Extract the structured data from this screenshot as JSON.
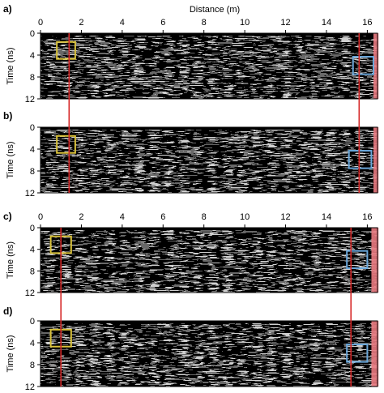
{
  "figure": {
    "x_title": "Distance (m)",
    "y_title": "Time (ns)",
    "colors": {
      "axis": "#000000",
      "marker_line": "#d62828",
      "red_band": "#e9797f",
      "yellow_box": "#d9c23a",
      "blue_box": "#6aa7da"
    },
    "panels": [
      {
        "letter": "a)",
        "x_ticks": [
          "0",
          "2",
          "4",
          "6",
          "8",
          "10",
          "12",
          "14",
          "16"
        ],
        "y_ticks": [
          "0",
          "4",
          "8",
          "12"
        ]
      },
      {
        "letter": "b)",
        "x_ticks": [],
        "y_ticks": [
          "0",
          "4",
          "8",
          "12"
        ]
      },
      {
        "letter": "c)",
        "x_ticks": [
          "0",
          "2",
          "4",
          "6",
          "8",
          "10",
          "12",
          "14",
          "16"
        ],
        "y_ticks": [
          "0",
          "4",
          "8",
          "12"
        ]
      },
      {
        "letter": "d)",
        "x_ticks": [],
        "y_ticks": [
          "0",
          "4",
          "8",
          "12"
        ]
      }
    ]
  },
  "chart_data": [
    {
      "type": "heatmap",
      "panel": "a",
      "xlabel": "Distance (m)",
      "ylabel": "Time (ns)",
      "xlim": [
        0,
        16.5
      ],
      "ylim": [
        12,
        0
      ],
      "marker_lines_x": [
        1.4,
        15.6
      ],
      "yellow_box": {
        "x": [
          0.8,
          1.7
        ],
        "y": [
          1.6,
          4.7
        ]
      },
      "blue_box": {
        "x": [
          15.3,
          16.3
        ],
        "y": [
          4.3,
          7.5
        ]
      },
      "red_band_x": [
        16.3,
        16.55
      ]
    },
    {
      "type": "heatmap",
      "panel": "b",
      "xlabel": "",
      "ylabel": "Time (ns)",
      "xlim": [
        0,
        16.5
      ],
      "ylim": [
        12,
        0
      ],
      "marker_lines_x": [
        1.4,
        15.6
      ],
      "yellow_box": {
        "x": [
          0.8,
          1.7
        ],
        "y": [
          1.6,
          4.7
        ]
      },
      "blue_box": {
        "x": [
          15.1,
          16.2
        ],
        "y": [
          4.3,
          7.5
        ]
      },
      "red_band_x": [
        16.3,
        16.55
      ]
    },
    {
      "type": "heatmap",
      "panel": "c",
      "xlabel": "",
      "ylabel": "Time (ns)",
      "xlim": [
        0,
        16.5
      ],
      "ylim": [
        12,
        0
      ],
      "marker_lines_x": [
        1.0,
        15.2
      ],
      "yellow_box": {
        "x": [
          0.5,
          1.5
        ],
        "y": [
          1.6,
          4.7
        ]
      },
      "blue_box": {
        "x": [
          15.0,
          16.0
        ],
        "y": [
          4.3,
          7.5
        ]
      },
      "red_band_x": [
        16.2,
        16.55
      ]
    },
    {
      "type": "heatmap",
      "panel": "d",
      "xlabel": "",
      "ylabel": "Time (ns)",
      "xlim": [
        0,
        16.5
      ],
      "ylim": [
        12,
        0
      ],
      "marker_lines_x": [
        1.0,
        15.2
      ],
      "yellow_box": {
        "x": [
          0.5,
          1.5
        ],
        "y": [
          1.6,
          4.7
        ]
      },
      "blue_box": {
        "x": [
          15.0,
          16.0
        ],
        "y": [
          4.3,
          7.5
        ]
      },
      "red_band_x": [
        16.2,
        16.55
      ]
    }
  ]
}
